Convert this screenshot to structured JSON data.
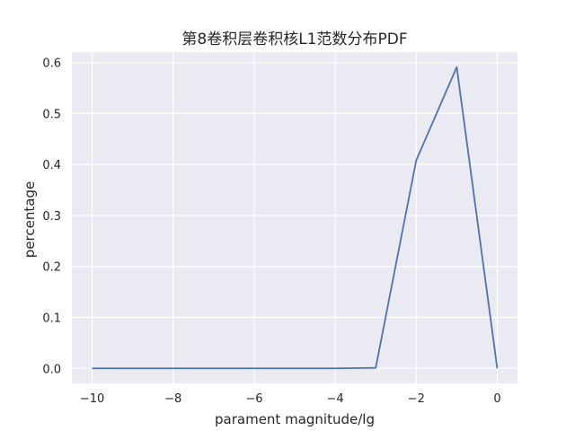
{
  "chart_data": {
    "type": "line",
    "title": "第8卷积层卷积核L1范数分布PDF",
    "xlabel": "parament magnitude/lg",
    "ylabel": "percentage",
    "x": [
      -10,
      -9,
      -8,
      -7,
      -6,
      -5,
      -4,
      -3,
      -2,
      -1,
      0
    ],
    "series": [
      {
        "values": [
          0.0,
          0.0,
          0.0,
          0.0,
          0.0,
          0.0,
          0.0,
          0.001,
          0.408,
          0.591,
          0.0
        ],
        "color": "#4c72b0"
      }
    ],
    "xlim": [
      -10.5,
      0.5
    ],
    "ylim": [
      -0.0295,
      0.6205
    ],
    "xticks": [
      -10,
      -8,
      -6,
      -4,
      -2,
      0
    ],
    "xtick_labels": [
      "−10",
      "−8",
      "−6",
      "−4",
      "−2",
      "0"
    ],
    "yticks": [
      0.0,
      0.1,
      0.2,
      0.3,
      0.4,
      0.5,
      0.6
    ],
    "ytick_labels": [
      "0.0",
      "0.1",
      "0.2",
      "0.3",
      "0.4",
      "0.5",
      "0.6"
    ],
    "grid": true,
    "background_color": "#eaeaf2",
    "grid_color": "#ffffff"
  }
}
